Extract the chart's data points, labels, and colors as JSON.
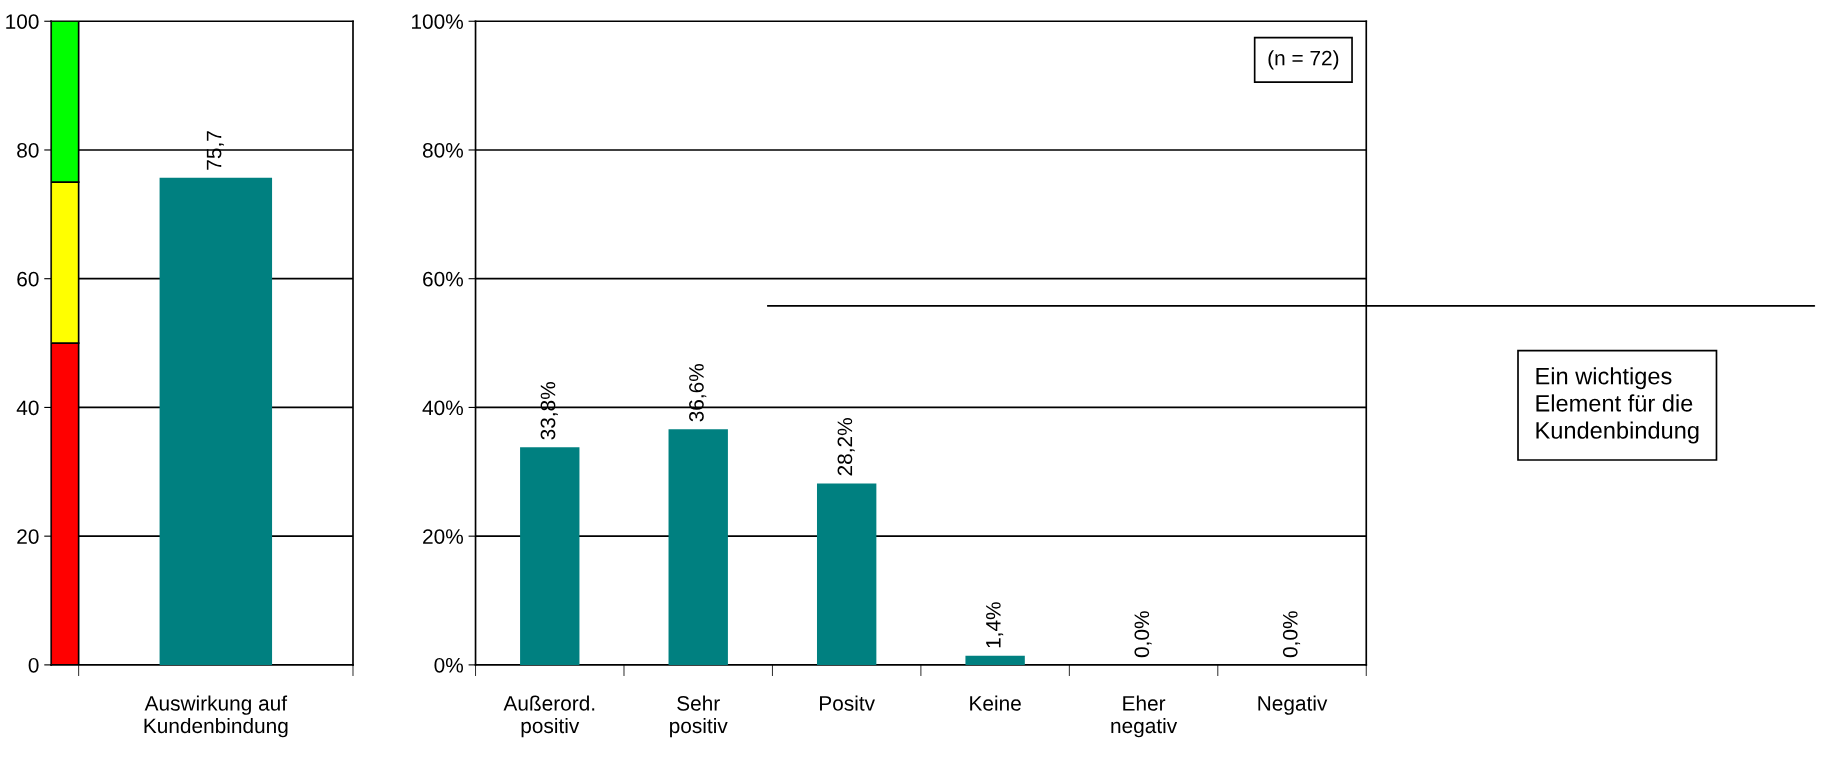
{
  "chart_data": [
    {
      "type": "bar",
      "categories": [
        "Auswirkung auf\nKundenbindung"
      ],
      "values": [
        75.7
      ],
      "color": "#008080",
      "value_labels": [
        "75,7"
      ],
      "ylim": [
        0,
        100
      ],
      "yticks": [
        0,
        20,
        40,
        60,
        80,
        100
      ],
      "grid": "y",
      "bands": [
        {
          "axis": "y",
          "from": 0,
          "to": 50,
          "color": "#ff0000"
        },
        {
          "axis": "y",
          "from": 50,
          "to": 75,
          "color": "#ffff00"
        },
        {
          "axis": "y",
          "from": 75,
          "to": 100,
          "color": "#00ff00"
        }
      ]
    },
    {
      "type": "bar",
      "categories": [
        "Außerord.\npositiv",
        "Sehr\npositiv",
        "Positv",
        "Keine",
        "Eher\nnegativ",
        "Negativ"
      ],
      "values": [
        33.8,
        36.6,
        28.2,
        1.4,
        0,
        0
      ],
      "color": "#008080",
      "value_labels": [
        "33,8%",
        "36,6%",
        "28,2%",
        "1,4%",
        "0,0%",
        "0,0%"
      ],
      "ylim": [
        0,
        100
      ],
      "yticks": [
        {
          "value": 0,
          "label": "0%"
        },
        {
          "value": 20,
          "label": "20%"
        },
        {
          "value": 40,
          "label": "40%"
        },
        {
          "value": 60,
          "label": "60%"
        },
        {
          "value": 80,
          "label": "80%"
        },
        {
          "value": 100,
          "label": "100%"
        }
      ],
      "grid": "y",
      "annotations": [
        "(n = 72)",
        "Ein wichtiges\nElement für die\nKundenbindung"
      ]
    }
  ]
}
